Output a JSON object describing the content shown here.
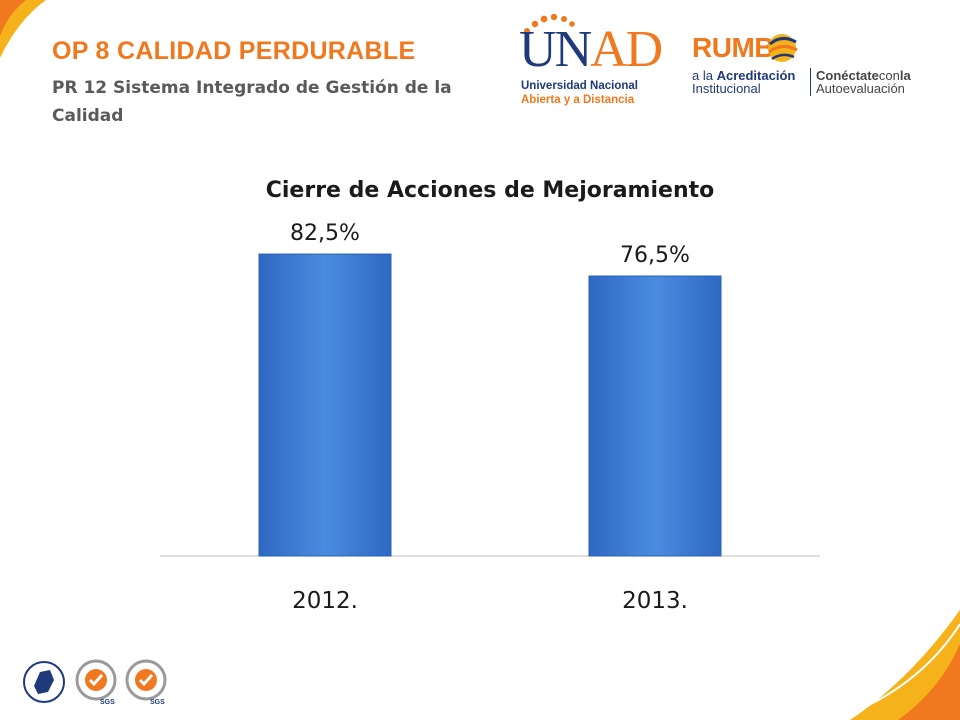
{
  "header": {
    "title": "OP 8 CALIDAD PERDURABLE",
    "subtitle": "PR 12 Sistema Integrado de Gestión de la Calidad"
  },
  "logos": {
    "unad": {
      "word_u": "U",
      "word_n": "N",
      "word_ad": "AD",
      "line1": "Universidad Nacional",
      "line2": "Abierta y a Distancia"
    },
    "rumbo": {
      "word": "RUMB",
      "line1_prefix": "a la ",
      "line1_bold": "Acreditación",
      "line2": "Institucional",
      "line3_bold": "Conéctate",
      "line3_mid": "con",
      "line3_end": "la",
      "line4": "Autoevaluación"
    },
    "seal_text": "SGS"
  },
  "colors": {
    "accent_orange": "#f0781e",
    "accent_yellow": "#f6b21a",
    "brand_navy": "#1e3a7a",
    "bar_blue": "#3d7fd8",
    "bar_edge": "#2a62b5"
  },
  "chart_data": {
    "type": "bar",
    "title": "Cierre de Acciones de Mejoramiento",
    "categories": [
      "2012.",
      "2013."
    ],
    "values": [
      82.5,
      76.5
    ],
    "data_labels": [
      "82,5%",
      "76,5%"
    ],
    "xlabel": "",
    "ylabel": "",
    "ylim": [
      0,
      100
    ],
    "grid": false,
    "legend": "none"
  }
}
